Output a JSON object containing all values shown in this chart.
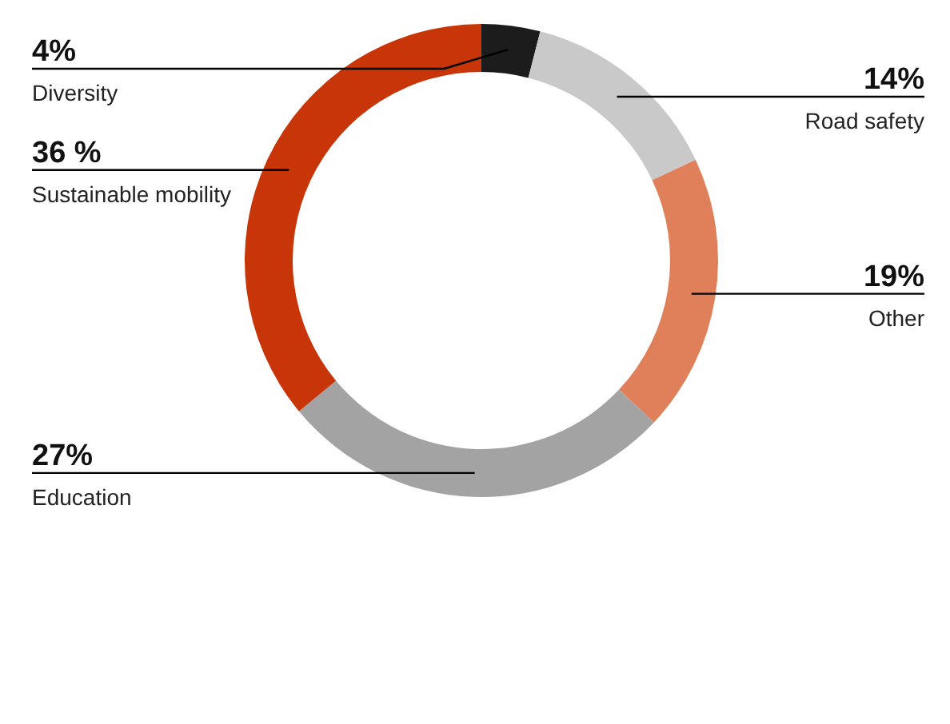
{
  "chart_data": {
    "type": "donut",
    "categories": [
      "Diversity",
      "Road safety",
      "Other",
      "Education",
      "Sustainable mobility"
    ],
    "values": [
      4,
      14,
      19,
      27,
      36
    ],
    "value_labels": [
      "4%",
      "14%",
      "19%",
      "27%",
      "36 %"
    ],
    "colors": [
      "#1c1c1c",
      "#c9c9c9",
      "#e0805a",
      "#a3a3a3",
      "#c83508"
    ]
  }
}
